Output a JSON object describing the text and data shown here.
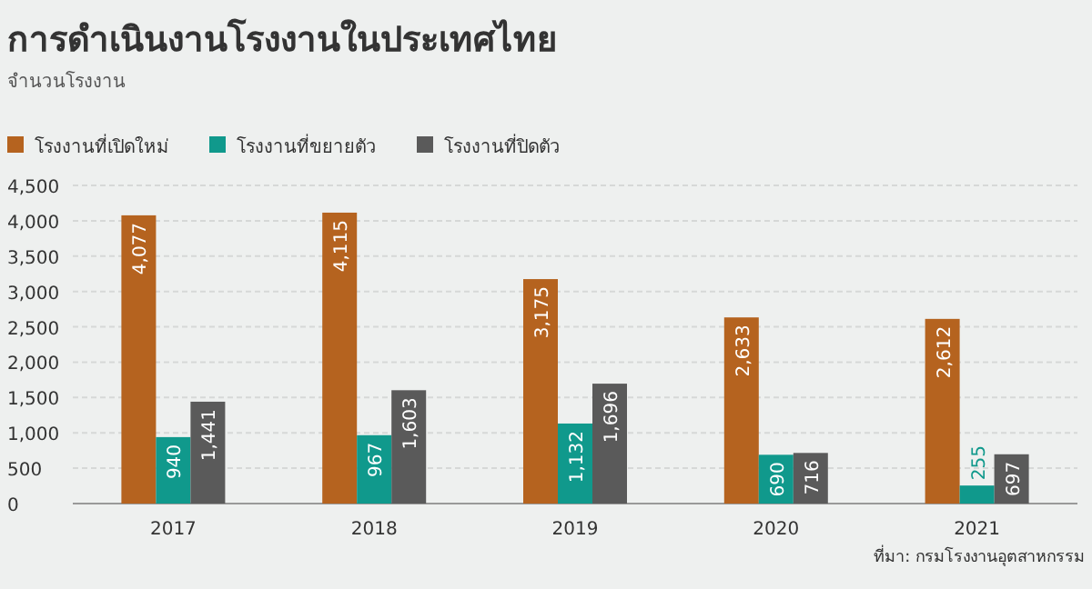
{
  "chart_data": {
    "type": "bar",
    "title": "การดำเนินงานโรงงานในประเทศไทย",
    "subtitle": "จำนวนโรงงาน",
    "categories": [
      "2017",
      "2018",
      "2019",
      "2020",
      "2021"
    ],
    "series": [
      {
        "name": "โรงงานที่เปิดใหม่",
        "color": "#b5631f",
        "values": [
          4077,
          4115,
          3175,
          2633,
          2612
        ],
        "value_labels": [
          "4,077",
          "4,115",
          "3,175",
          "2,633",
          "2,612"
        ]
      },
      {
        "name": "โรงงานที่ขยายตัว",
        "color": "#10998c",
        "values": [
          940,
          967,
          1132,
          690,
          255
        ],
        "value_labels": [
          "940",
          "967",
          "1,132",
          "690",
          "255"
        ]
      },
      {
        "name": "โรงงานที่ปิดตัว",
        "color": "#5a5a5a",
        "values": [
          1441,
          1603,
          1696,
          716,
          697
        ],
        "value_labels": [
          "1,441",
          "1,603",
          "1,696",
          "716",
          "697"
        ]
      }
    ],
    "ylim": [
      0,
      4500
    ],
    "yticks": [
      {
        "value": 0,
        "label": "0"
      },
      {
        "value": 500,
        "label": "500"
      },
      {
        "value": 1000,
        "label": "1,000"
      },
      {
        "value": 1500,
        "label": "1,500"
      },
      {
        "value": 2000,
        "label": "2,000"
      },
      {
        "value": 2500,
        "label": "2,500"
      },
      {
        "value": 3000,
        "label": "3,000"
      },
      {
        "value": 3500,
        "label": "3,500"
      },
      {
        "value": 4000,
        "label": "4,000"
      },
      {
        "value": 4500,
        "label": "4,500"
      }
    ],
    "grid": "y",
    "legend": "top left",
    "annotations": [
      "ที่มา: กรมโรงงานอุตสาหกรรม"
    ]
  }
}
